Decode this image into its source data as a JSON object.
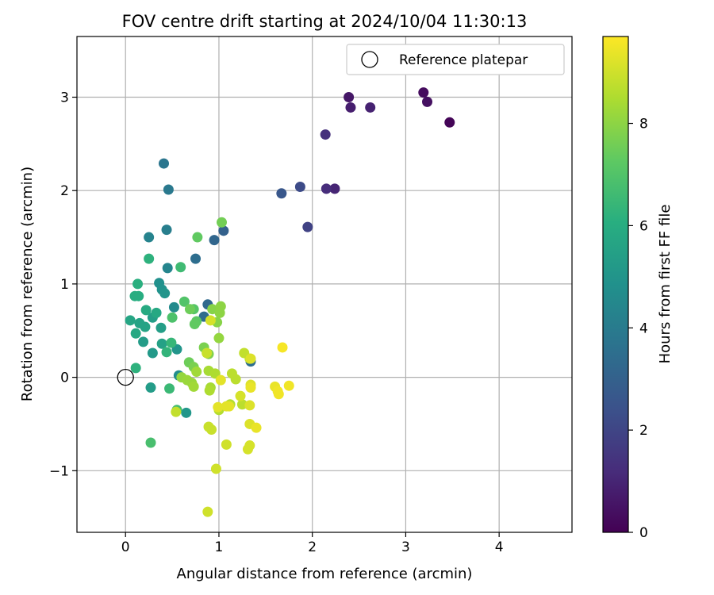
{
  "chart_data": {
    "type": "scatter",
    "title": "FOV centre drift starting at 2024/10/04 11:30:13",
    "xlabel": "Angular distance from reference (arcmin)",
    "ylabel": "Rotation from reference (arcmin)",
    "xlim": [
      -0.52,
      4.78
    ],
    "ylim": [
      -1.66,
      3.65
    ],
    "x_ticks": [
      "0",
      "1",
      "2",
      "3",
      "4"
    ],
    "y_ticks": [
      "−1",
      "0",
      "1",
      "2",
      "3"
    ],
    "grid": true,
    "legend": {
      "position": "top-right",
      "entries": [
        "Reference platepar"
      ]
    },
    "reference_point": {
      "x": 0.0,
      "y": 0.0,
      "label": "Reference platepar"
    },
    "colorbar": {
      "label": "Hours from first FF file",
      "min": 0,
      "max": 9.7,
      "ticks": [
        "0",
        "2",
        "4",
        "6",
        "8"
      ],
      "colormap": "viridis"
    },
    "points": [
      {
        "x": 3.47,
        "y": 2.73,
        "c": 0.1
      },
      {
        "x": 3.19,
        "y": 3.05,
        "c": 0.3
      },
      {
        "x": 3.23,
        "y": 2.95,
        "c": 0.4
      },
      {
        "x": 2.39,
        "y": 3.0,
        "c": 0.6
      },
      {
        "x": 2.41,
        "y": 2.89,
        "c": 0.8
      },
      {
        "x": 2.62,
        "y": 2.89,
        "c": 0.9
      },
      {
        "x": 2.24,
        "y": 2.02,
        "c": 1.0
      },
      {
        "x": 2.15,
        "y": 2.02,
        "c": 1.2
      },
      {
        "x": 2.14,
        "y": 2.6,
        "c": 1.3
      },
      {
        "x": 1.95,
        "y": 1.61,
        "c": 1.9
      },
      {
        "x": 1.87,
        "y": 2.04,
        "c": 2.2
      },
      {
        "x": 1.67,
        "y": 1.97,
        "c": 2.6
      },
      {
        "x": 1.05,
        "y": 1.57,
        "c": 3.0
      },
      {
        "x": 0.95,
        "y": 1.47,
        "c": 3.2
      },
      {
        "x": 0.88,
        "y": 0.78,
        "c": 3.3
      },
      {
        "x": 0.84,
        "y": 0.65,
        "c": 3.4
      },
      {
        "x": 0.75,
        "y": 1.27,
        "c": 3.5
      },
      {
        "x": 1.34,
        "y": 0.17,
        "c": 3.5
      },
      {
        "x": 0.41,
        "y": 2.29,
        "c": 3.8
      },
      {
        "x": 0.46,
        "y": 2.01,
        "c": 3.9
      },
      {
        "x": 0.44,
        "y": 1.58,
        "c": 4.1
      },
      {
        "x": 0.25,
        "y": 1.5,
        "c": 4.3
      },
      {
        "x": 0.45,
        "y": 1.17,
        "c": 4.4
      },
      {
        "x": 0.52,
        "y": 0.75,
        "c": 4.6
      },
      {
        "x": 0.57,
        "y": 0.02,
        "c": 4.7
      },
      {
        "x": 0.36,
        "y": 1.01,
        "c": 4.8
      },
      {
        "x": 0.39,
        "y": 0.94,
        "c": 4.9
      },
      {
        "x": 0.42,
        "y": 0.9,
        "c": 5.0
      },
      {
        "x": 0.55,
        "y": 0.3,
        "c": 5.0
      },
      {
        "x": 0.65,
        "y": -0.38,
        "c": 5.1
      },
      {
        "x": 0.29,
        "y": 0.26,
        "c": 5.2
      },
      {
        "x": 0.27,
        "y": -0.11,
        "c": 5.3
      },
      {
        "x": 0.19,
        "y": 0.38,
        "c": 5.3
      },
      {
        "x": 0.29,
        "y": 0.64,
        "c": 5.4
      },
      {
        "x": 0.38,
        "y": 0.53,
        "c": 5.4
      },
      {
        "x": 0.39,
        "y": 0.36,
        "c": 5.5
      },
      {
        "x": 0.21,
        "y": 0.54,
        "c": 5.6
      },
      {
        "x": 0.15,
        "y": 0.58,
        "c": 5.6
      },
      {
        "x": 0.05,
        "y": 0.61,
        "c": 5.7
      },
      {
        "x": 0.11,
        "y": 0.47,
        "c": 5.8
      },
      {
        "x": 0.33,
        "y": 0.69,
        "c": 5.8
      },
      {
        "x": 0.22,
        "y": 0.72,
        "c": 5.9
      },
      {
        "x": 0.1,
        "y": 0.87,
        "c": 6.0
      },
      {
        "x": 0.14,
        "y": 0.87,
        "c": 6.0
      },
      {
        "x": 0.13,
        "y": 1.0,
        "c": 6.1
      },
      {
        "x": 0.25,
        "y": 1.27,
        "c": 6.2
      },
      {
        "x": 0.11,
        "y": 0.1,
        "c": 6.2
      },
      {
        "x": 0.44,
        "y": 0.27,
        "c": 6.3
      },
      {
        "x": 0.49,
        "y": 0.37,
        "c": 6.4
      },
      {
        "x": 0.47,
        "y": -0.12,
        "c": 6.5
      },
      {
        "x": 0.59,
        "y": 1.18,
        "c": 6.6
      },
      {
        "x": 0.55,
        "y": -0.35,
        "c": 6.7
      },
      {
        "x": 0.27,
        "y": -0.7,
        "c": 6.8
      },
      {
        "x": 0.5,
        "y": 0.64,
        "c": 6.9
      },
      {
        "x": 0.63,
        "y": 0.81,
        "c": 7.0
      },
      {
        "x": 0.73,
        "y": 0.73,
        "c": 7.1
      },
      {
        "x": 0.76,
        "y": 0.6,
        "c": 7.2
      },
      {
        "x": 0.74,
        "y": 0.57,
        "c": 7.3
      },
      {
        "x": 0.77,
        "y": 1.5,
        "c": 7.3
      },
      {
        "x": 0.69,
        "y": 0.73,
        "c": 7.5
      },
      {
        "x": 0.68,
        "y": 0.16,
        "c": 7.5
      },
      {
        "x": 1.03,
        "y": 1.66,
        "c": 7.6
      },
      {
        "x": 0.73,
        "y": 0.11,
        "c": 7.7
      },
      {
        "x": 0.84,
        "y": 0.32,
        "c": 7.7
      },
      {
        "x": 0.89,
        "y": 0.25,
        "c": 7.8
      },
      {
        "x": 0.93,
        "y": 0.73,
        "c": 7.9
      },
      {
        "x": 0.98,
        "y": 0.59,
        "c": 7.9
      },
      {
        "x": 1.02,
        "y": 0.76,
        "c": 8.0
      },
      {
        "x": 1.01,
        "y": 0.69,
        "c": 8.0
      },
      {
        "x": 1.0,
        "y": 0.42,
        "c": 8.1
      },
      {
        "x": 0.6,
        "y": 0.0,
        "c": 8.1
      },
      {
        "x": 0.66,
        "y": -0.03,
        "c": 8.2
      },
      {
        "x": 0.71,
        "y": -0.06,
        "c": 8.2
      },
      {
        "x": 0.73,
        "y": -0.1,
        "c": 8.3
      },
      {
        "x": 0.76,
        "y": 0.06,
        "c": 8.3
      },
      {
        "x": 0.89,
        "y": 0.07,
        "c": 8.4
      },
      {
        "x": 0.91,
        "y": -0.11,
        "c": 8.4
      },
      {
        "x": 0.9,
        "y": -0.14,
        "c": 8.5
      },
      {
        "x": 0.96,
        "y": 0.04,
        "c": 8.5
      },
      {
        "x": 1.0,
        "y": -0.35,
        "c": 8.6
      },
      {
        "x": 1.12,
        "y": -0.29,
        "c": 8.6
      },
      {
        "x": 1.14,
        "y": 0.04,
        "c": 8.7
      },
      {
        "x": 1.18,
        "y": -0.02,
        "c": 8.7
      },
      {
        "x": 1.25,
        "y": -0.29,
        "c": 8.7
      },
      {
        "x": 1.27,
        "y": 0.26,
        "c": 8.8
      },
      {
        "x": 1.33,
        "y": 0.2,
        "c": 8.8
      },
      {
        "x": 0.54,
        "y": -0.37,
        "c": 8.8
      },
      {
        "x": 0.89,
        "y": -0.53,
        "c": 8.9
      },
      {
        "x": 0.92,
        "y": -0.56,
        "c": 8.9
      },
      {
        "x": 0.87,
        "y": 0.26,
        "c": 8.9
      },
      {
        "x": 0.88,
        "y": -1.44,
        "c": 9.0
      },
      {
        "x": 1.08,
        "y": -0.72,
        "c": 9.0
      },
      {
        "x": 0.97,
        "y": -0.98,
        "c": 9.0
      },
      {
        "x": 0.91,
        "y": 0.61,
        "c": 9.1
      },
      {
        "x": 1.23,
        "y": -0.2,
        "c": 9.1
      },
      {
        "x": 1.31,
        "y": -0.77,
        "c": 9.1
      },
      {
        "x": 1.33,
        "y": -0.73,
        "c": 9.1
      },
      {
        "x": 1.34,
        "y": 0.2,
        "c": 9.2
      },
      {
        "x": 1.34,
        "y": -0.08,
        "c": 9.2
      },
      {
        "x": 1.33,
        "y": -0.3,
        "c": 9.2
      },
      {
        "x": 1.33,
        "y": -0.5,
        "c": 9.2
      },
      {
        "x": 1.08,
        "y": -0.31,
        "c": 9.3
      },
      {
        "x": 1.11,
        "y": -0.31,
        "c": 9.3
      },
      {
        "x": 1.02,
        "y": -0.03,
        "c": 9.3
      },
      {
        "x": 0.99,
        "y": -0.32,
        "c": 9.3
      },
      {
        "x": 1.4,
        "y": -0.54,
        "c": 9.4
      },
      {
        "x": 1.34,
        "y": -0.11,
        "c": 9.4
      },
      {
        "x": 1.6,
        "y": -0.1,
        "c": 9.4
      },
      {
        "x": 1.63,
        "y": -0.15,
        "c": 9.5
      },
      {
        "x": 1.64,
        "y": -0.18,
        "c": 9.5
      },
      {
        "x": 1.75,
        "y": -0.09,
        "c": 9.5
      },
      {
        "x": 1.68,
        "y": 0.32,
        "c": 9.6
      }
    ]
  }
}
